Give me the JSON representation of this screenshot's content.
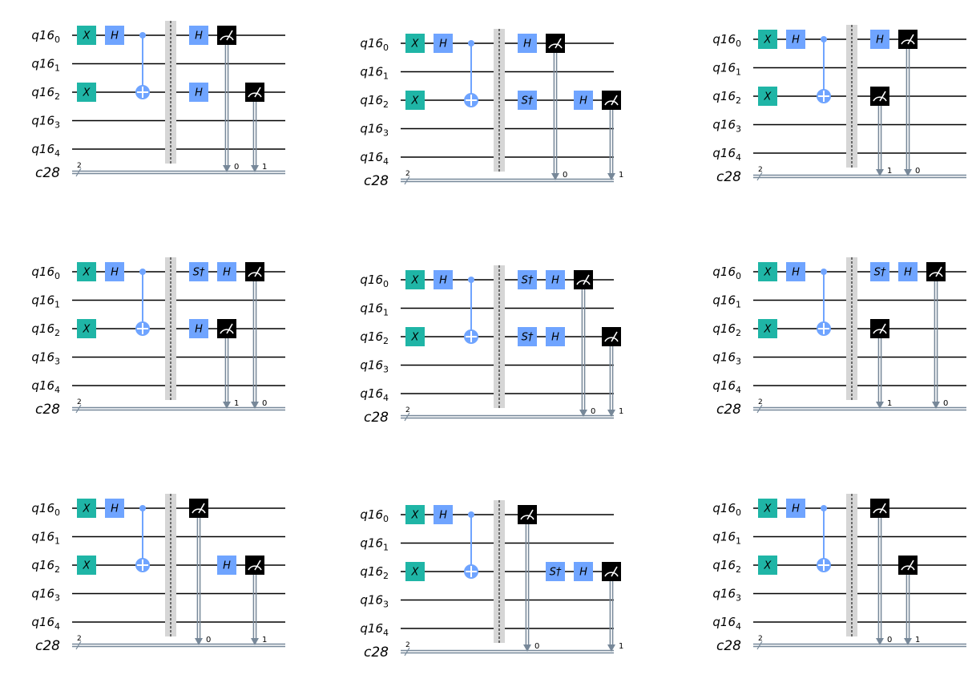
{
  "qubit_labels": [
    {
      "reg": "q16",
      "idx": "0"
    },
    {
      "reg": "q16",
      "idx": "1"
    },
    {
      "reg": "q16",
      "idx": "2"
    },
    {
      "reg": "q16",
      "idx": "3"
    },
    {
      "reg": "q16",
      "idx": "4"
    }
  ],
  "classical_label": {
    "reg": "c28",
    "width": "2"
  },
  "colors": {
    "x_gate": "#1fb5a6",
    "h_gate": "#6fa4ff",
    "measure": "#000000",
    "classical_wire": "#778899",
    "barrier": "#d6d6d6",
    "wire": "#000000"
  },
  "common_prefix": [
    {
      "type": "X",
      "label": "X",
      "qubit": 0,
      "col": 0
    },
    {
      "type": "X",
      "label": "X",
      "qubit": 2,
      "col": 0
    },
    {
      "type": "H",
      "label": "H",
      "qubit": 0,
      "col": 1
    },
    {
      "type": "CX",
      "control": 0,
      "target": 2,
      "col": 2
    }
  ],
  "circuits": [
    {
      "ops": [
        {
          "type": "H",
          "label": "H",
          "qubit": 0,
          "col": 4
        },
        {
          "type": "H",
          "label": "H",
          "qubit": 2,
          "col": 4
        },
        {
          "type": "M",
          "qubit": 0,
          "cbit": "0",
          "col": 5
        },
        {
          "type": "M",
          "qubit": 2,
          "cbit": "1",
          "col": 6
        }
      ]
    },
    {
      "ops": [
        {
          "type": "H",
          "label": "H",
          "qubit": 0,
          "col": 4
        },
        {
          "type": "SDG",
          "label": "S†",
          "qubit": 2,
          "col": 4
        },
        {
          "type": "M",
          "qubit": 0,
          "cbit": "0",
          "col": 5
        },
        {
          "type": "H",
          "label": "H",
          "qubit": 2,
          "col": 6
        },
        {
          "type": "M",
          "qubit": 2,
          "cbit": "1",
          "col": 7
        }
      ]
    },
    {
      "ops": [
        {
          "type": "H",
          "label": "H",
          "qubit": 0,
          "col": 4
        },
        {
          "type": "M",
          "qubit": 2,
          "cbit": "1",
          "col": 4
        },
        {
          "type": "M",
          "qubit": 0,
          "cbit": "0",
          "col": 5
        }
      ]
    },
    {
      "ops": [
        {
          "type": "SDG",
          "label": "S†",
          "qubit": 0,
          "col": 4
        },
        {
          "type": "H",
          "label": "H",
          "qubit": 2,
          "col": 4
        },
        {
          "type": "H",
          "label": "H",
          "qubit": 0,
          "col": 5
        },
        {
          "type": "M",
          "qubit": 2,
          "cbit": "1",
          "col": 5
        },
        {
          "type": "M",
          "qubit": 0,
          "cbit": "0",
          "col": 6
        }
      ]
    },
    {
      "ops": [
        {
          "type": "SDG",
          "label": "S†",
          "qubit": 0,
          "col": 4
        },
        {
          "type": "SDG",
          "label": "S†",
          "qubit": 2,
          "col": 4
        },
        {
          "type": "H",
          "label": "H",
          "qubit": 0,
          "col": 5
        },
        {
          "type": "H",
          "label": "H",
          "qubit": 2,
          "col": 5
        },
        {
          "type": "M",
          "qubit": 0,
          "cbit": "0",
          "col": 6
        },
        {
          "type": "M",
          "qubit": 2,
          "cbit": "1",
          "col": 7
        }
      ]
    },
    {
      "ops": [
        {
          "type": "SDG",
          "label": "S†",
          "qubit": 0,
          "col": 4
        },
        {
          "type": "M",
          "qubit": 2,
          "cbit": "1",
          "col": 4
        },
        {
          "type": "H",
          "label": "H",
          "qubit": 0,
          "col": 5
        },
        {
          "type": "M",
          "qubit": 0,
          "cbit": "0",
          "col": 6
        }
      ]
    },
    {
      "ops": [
        {
          "type": "M",
          "qubit": 0,
          "cbit": "0",
          "col": 4
        },
        {
          "type": "H",
          "label": "H",
          "qubit": 2,
          "col": 5
        },
        {
          "type": "M",
          "qubit": 2,
          "cbit": "1",
          "col": 6
        }
      ]
    },
    {
      "ops": [
        {
          "type": "M",
          "qubit": 0,
          "cbit": "0",
          "col": 4
        },
        {
          "type": "SDG",
          "label": "S†",
          "qubit": 2,
          "col": 5
        },
        {
          "type": "H",
          "label": "H",
          "qubit": 2,
          "col": 6
        },
        {
          "type": "M",
          "qubit": 2,
          "cbit": "1",
          "col": 7
        }
      ]
    },
    {
      "ops": [
        {
          "type": "M",
          "qubit": 0,
          "cbit": "0",
          "col": 4
        },
        {
          "type": "M",
          "qubit": 2,
          "cbit": "1",
          "col": 5
        }
      ]
    }
  ]
}
